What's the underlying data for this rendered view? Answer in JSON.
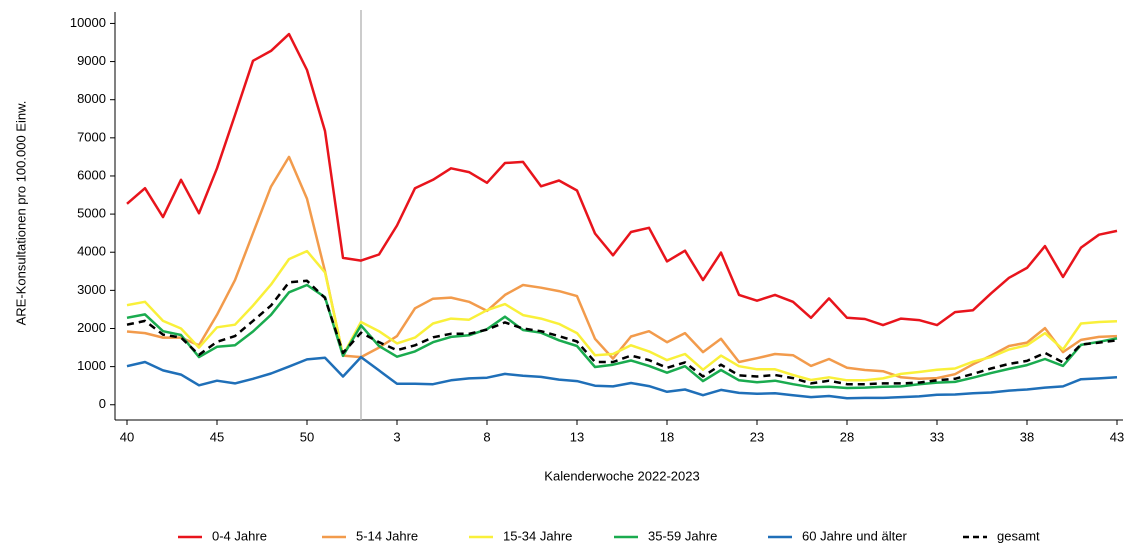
{
  "chart_data": {
    "type": "line",
    "y_label": "ARE-Konsultationen pro 100.000 Einw.",
    "x_label": "Kalenderwoche 2022-2023",
    "categories": [
      "40",
      null,
      null,
      null,
      null,
      "45",
      null,
      null,
      null,
      null,
      "50",
      null,
      null,
      null,
      null,
      "3",
      null,
      null,
      null,
      null,
      "8",
      null,
      null,
      null,
      null,
      "13",
      null,
      null,
      null,
      null,
      "18",
      null,
      null,
      null,
      null,
      "23",
      null,
      null,
      null,
      null,
      "28",
      null,
      null,
      null,
      null,
      "33",
      null,
      null,
      null,
      null,
      "38",
      null,
      null,
      null,
      null,
      "43"
    ],
    "vertical_line_at": 13,
    "ylim": [
      -400,
      10300
    ],
    "yticks": [
      0,
      1000,
      2000,
      3000,
      4000,
      5000,
      6000,
      7000,
      8000,
      9000,
      10000
    ],
    "legend": "bottom",
    "series": [
      {
        "name": "0-4 Jahre",
        "color": "#e8141c",
        "dash": false,
        "values": [
          5270,
          5680,
          4920,
          5900,
          5020,
          6200,
          7600,
          9020,
          9280,
          9720,
          8780,
          7180,
          3850,
          3780,
          3940,
          4700,
          5680,
          5900,
          6200,
          6100,
          5820,
          6340,
          6370,
          5730,
          5880,
          5620,
          4490,
          3920,
          4530,
          4640,
          3760,
          4040,
          3270,
          3990,
          2880,
          2730,
          2880,
          2700,
          2280,
          2790,
          2280,
          2250,
          2090,
          2260,
          2220,
          2090,
          2430,
          2480,
          2920,
          3330,
          3590,
          4160,
          3350,
          4120,
          4460,
          4560
        ]
      },
      {
        "name": "5-14 Jahre",
        "color": "#f29b4c",
        "dash": false,
        "values": [
          1920,
          1880,
          1760,
          1760,
          1560,
          2360,
          3270,
          4500,
          5720,
          6500,
          5400,
          3500,
          1290,
          1250,
          1500,
          1800,
          2530,
          2780,
          2810,
          2700,
          2460,
          2880,
          3140,
          3070,
          2980,
          2850,
          1730,
          1210,
          1790,
          1930,
          1640,
          1880,
          1380,
          1730,
          1120,
          1220,
          1330,
          1300,
          1020,
          1200,
          970,
          910,
          880,
          720,
          680,
          700,
          800,
          1060,
          1290,
          1540,
          1630,
          2010,
          1380,
          1700,
          1780,
          1800
        ]
      },
      {
        "name": "15-34 Jahre",
        "color": "#f9f03a",
        "dash": false,
        "values": [
          2610,
          2700,
          2200,
          2000,
          1500,
          2030,
          2100,
          2600,
          3150,
          3820,
          4030,
          3470,
          1300,
          2170,
          1930,
          1610,
          1760,
          2130,
          2260,
          2230,
          2480,
          2640,
          2350,
          2260,
          2120,
          1880,
          1300,
          1330,
          1560,
          1400,
          1170,
          1330,
          920,
          1290,
          1010,
          930,
          930,
          780,
          650,
          720,
          640,
          640,
          690,
          810,
          860,
          920,
          950,
          1130,
          1250,
          1450,
          1560,
          1880,
          1450,
          2130,
          2170,
          2190
        ]
      },
      {
        "name": "35-59 Jahre",
        "color": "#1aab4f",
        "dash": false,
        "values": [
          2280,
          2370,
          1930,
          1830,
          1250,
          1520,
          1560,
          1920,
          2360,
          2950,
          3140,
          2820,
          1280,
          2080,
          1540,
          1260,
          1400,
          1640,
          1780,
          1820,
          1980,
          2310,
          1960,
          1890,
          1690,
          1540,
          990,
          1050,
          1160,
          1020,
          840,
          1010,
          620,
          910,
          640,
          590,
          630,
          540,
          460,
          470,
          440,
          450,
          470,
          480,
          540,
          580,
          600,
          710,
          830,
          940,
          1040,
          1200,
          1020,
          1570,
          1650,
          1740
        ]
      },
      {
        "name": "60 Jahre und älter",
        "color": "#1f6fb8",
        "dash": false,
        "values": [
          1010,
          1120,
          900,
          790,
          510,
          630,
          560,
          680,
          820,
          1000,
          1190,
          1230,
          740,
          1250,
          900,
          550,
          550,
          540,
          640,
          690,
          710,
          810,
          760,
          730,
          660,
          620,
          500,
          480,
          570,
          490,
          340,
          400,
          250,
          390,
          310,
          290,
          300,
          250,
          200,
          230,
          170,
          180,
          180,
          200,
          220,
          260,
          270,
          300,
          320,
          370,
          400,
          450,
          480,
          670,
          690,
          720
        ]
      },
      {
        "name": "gesamt",
        "color": "#000000",
        "dash": true,
        "values": [
          2100,
          2200,
          1840,
          1760,
          1310,
          1650,
          1800,
          2200,
          2600,
          3210,
          3250,
          2800,
          1360,
          1890,
          1640,
          1430,
          1560,
          1770,
          1860,
          1860,
          1970,
          2160,
          2000,
          1930,
          1800,
          1660,
          1120,
          1120,
          1290,
          1170,
          970,
          1110,
          740,
          1050,
          770,
          740,
          780,
          700,
          560,
          630,
          540,
          540,
          560,
          560,
          580,
          640,
          680,
          810,
          950,
          1070,
          1150,
          1360,
          1110,
          1580,
          1630,
          1690
        ]
      }
    ]
  }
}
